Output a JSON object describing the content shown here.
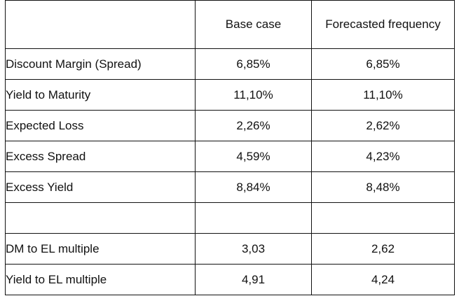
{
  "table": {
    "headers": [
      "",
      "Base case",
      "Forecasted frequency"
    ],
    "rows": [
      {
        "label": "Discount Margin (Spread)",
        "base": "6,85%",
        "forecast": "6,85%"
      },
      {
        "label": "Yield to Maturity",
        "base": "11,10%",
        "forecast": "11,10%"
      },
      {
        "label": "Expected Loss",
        "base": "2,26%",
        "forecast": "2,62%"
      },
      {
        "label": "Excess Spread",
        "base": "4,59%",
        "forecast": "4,23%"
      },
      {
        "label": "Excess Yield",
        "base": "8,84%",
        "forecast": "8,48%"
      },
      {
        "label": "",
        "base": "",
        "forecast": ""
      },
      {
        "label": "DM to EL multiple",
        "base": "3,03",
        "forecast": "2,62"
      },
      {
        "label": "Yield to EL multiple",
        "base": "4,91",
        "forecast": "4,24"
      }
    ]
  }
}
